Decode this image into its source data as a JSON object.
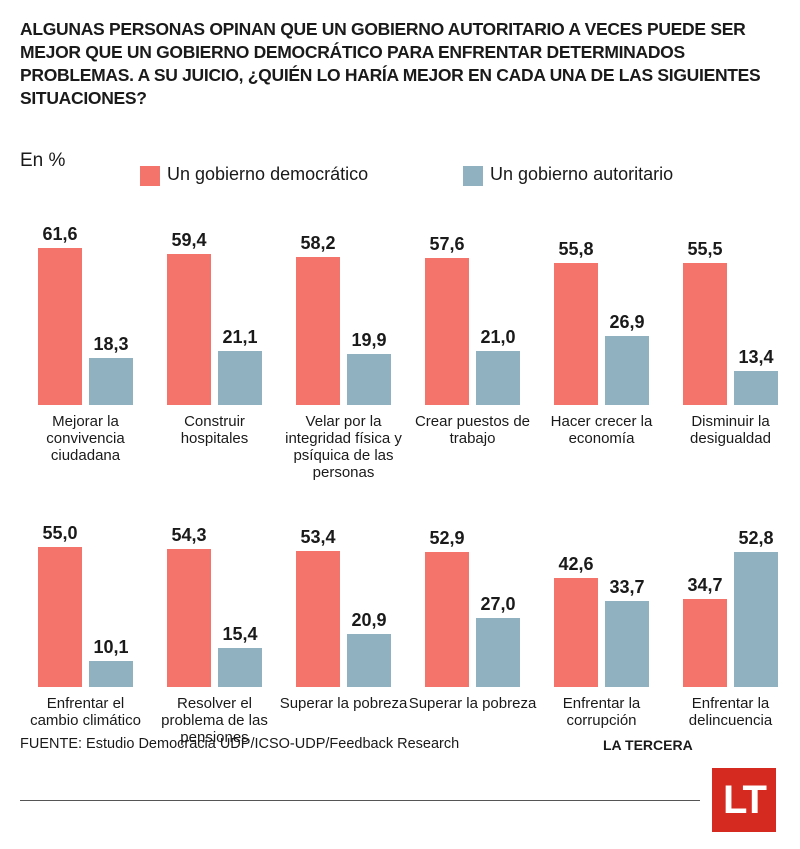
{
  "chart_data": {
    "type": "bar",
    "title": "ALGUNAS PERSONAS OPINAN QUE UN GOBIERNO AUTORITARIO A VECES PUEDE SER MEJOR QUE UN GOBIERNO DEMOCRÁTICO PARA ENFRENTAR DETERMINADOS PROBLEMAS. A SU JUICIO, ¿QUIÉN LO HARÍA MEJOR EN CADA UNA DE LAS SIGUIENTES SITUACIONES?",
    "subtitle": "En %",
    "categories": [
      "Mejorar la convivencia ciudadana",
      "Construir hospitales",
      "Velar por la integridad física y psíquica de las personas",
      "Crear puestos de trabajo",
      "Hacer crecer la economía",
      "Disminuir la desigualdad",
      "Enfrentar el cambio climático",
      "Resolver el problema de las pensiones",
      "Superar la pobreza",
      "Superar la pobreza",
      "Enfrentar la corrupción",
      "Enfrentar la delincuencia"
    ],
    "series": [
      {
        "name": "Un gobierno democrático",
        "color": "#f4736b",
        "values": [
          61.6,
          59.4,
          58.2,
          57.6,
          55.8,
          55.5,
          55.0,
          54.3,
          53.4,
          52.9,
          42.6,
          34.7
        ],
        "value_labels": [
          "61,6",
          "59,4",
          "58,2",
          "57,6",
          "55,8",
          "55,5",
          "55,0",
          "54,3",
          "53,4",
          "52,9",
          "42,6",
          "34,7"
        ]
      },
      {
        "name": "Un gobierno autoritario",
        "color": "#8fb1c0",
        "values": [
          18.3,
          21.1,
          19.9,
          21.0,
          26.9,
          13.4,
          10.1,
          15.4,
          20.9,
          27.0,
          33.7,
          52.8
        ],
        "value_labels": [
          "18,3",
          "21,1",
          "19,9",
          "21,0",
          "26,9",
          "13,4",
          "10,1",
          "15,4",
          "20,9",
          "27,0",
          "33,7",
          "52,8"
        ]
      }
    ],
    "source": "FUENTE: Estudio Democracia UDP/ICSO-UDP/Feedback Research",
    "brand": "LA TERCERA",
    "logo": "LT"
  }
}
